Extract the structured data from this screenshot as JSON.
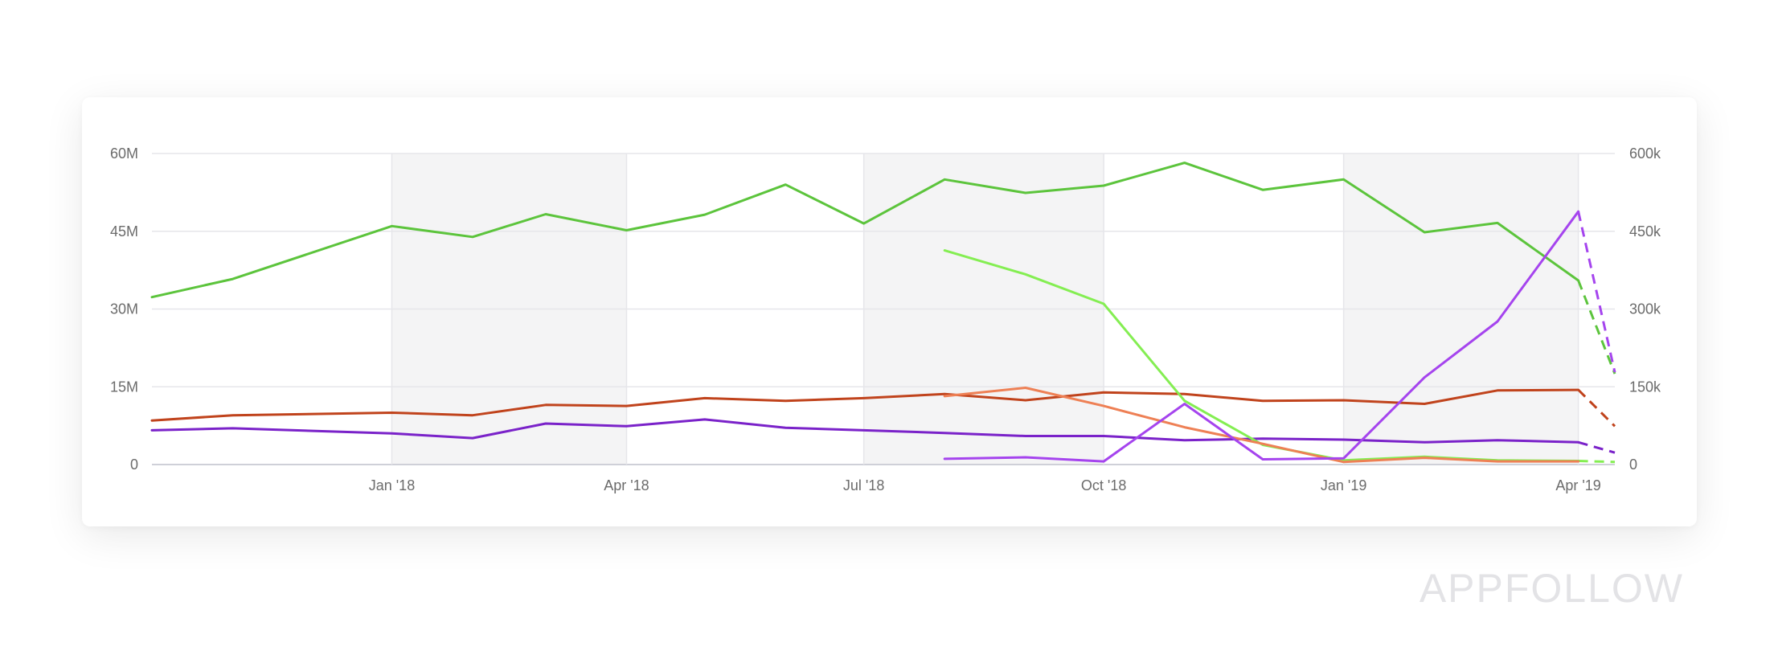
{
  "chart_data": {
    "type": "line",
    "title": "",
    "xlabel": "",
    "ylabel_left": "",
    "ylabel_right": "",
    "x_axis": {
      "start": "2017-10",
      "end": "2019-04-15",
      "tick_labels": [
        "Jan '18",
        "Apr '18",
        "Jul '18",
        "Oct '18",
        "Jan '19",
        "Apr '19"
      ],
      "shaded_bands": [
        [
          "Jan '18",
          "Apr '18"
        ],
        [
          "Jul '18",
          "Oct '18"
        ],
        [
          "Jan '19",
          "Apr '19"
        ]
      ]
    },
    "y_left": {
      "min": 0,
      "max": 60000000,
      "ticks": [
        0,
        15000000,
        30000000,
        45000000,
        60000000
      ],
      "tick_labels": [
        "0",
        "15M",
        "30M",
        "45M",
        "60M"
      ]
    },
    "y_right": {
      "min": 0,
      "max": 600000,
      "ticks": [
        0,
        150000,
        300000,
        450000,
        600000
      ],
      "tick_labels": [
        "0",
        "150k",
        "300k",
        "450k",
        "600k"
      ]
    },
    "grid": true,
    "legend": "none",
    "series": [
      {
        "axis": "left",
        "color": "#5cc43c",
        "points": [
          [
            "2017-10",
            32.3
          ],
          [
            "2017-11",
            35.8
          ],
          [
            "2018-01",
            46.0
          ],
          [
            "2018-02",
            43.9
          ],
          [
            "2018-03",
            48.3
          ],
          [
            "2018-04",
            45.2
          ],
          [
            "2018-05",
            48.2
          ],
          [
            "2018-06",
            54.0
          ],
          [
            "2018-07",
            46.5
          ],
          [
            "2018-08",
            55.0
          ],
          [
            "2018-09",
            52.4
          ],
          [
            "2018-10",
            53.8
          ],
          [
            "2018-11",
            58.2
          ],
          [
            "2018-12",
            53.0
          ],
          [
            "2019-01",
            55.0
          ],
          [
            "2019-02",
            44.8
          ],
          [
            "2019-03",
            46.6
          ],
          [
            "2019-04",
            35.5
          ]
        ],
        "forecast": [
          [
            "2019-04",
            35.5
          ],
          [
            "2019-04-15",
            17.5
          ]
        ]
      },
      {
        "axis": "left",
        "color": "#c0431c",
        "points": [
          [
            "2017-10",
            8.5
          ],
          [
            "2017-11",
            9.5
          ],
          [
            "2018-01",
            10.0
          ],
          [
            "2018-02",
            9.5
          ],
          [
            "2018-03",
            11.5
          ],
          [
            "2018-04",
            11.3
          ],
          [
            "2018-05",
            12.8
          ],
          [
            "2018-06",
            12.3
          ],
          [
            "2018-07",
            12.8
          ],
          [
            "2018-08",
            13.6
          ],
          [
            "2018-09",
            12.4
          ],
          [
            "2018-10",
            13.9
          ],
          [
            "2018-11",
            13.6
          ],
          [
            "2018-12",
            12.3
          ],
          [
            "2019-01",
            12.4
          ],
          [
            "2019-02",
            11.7
          ],
          [
            "2019-03",
            14.3
          ],
          [
            "2019-04",
            14.4
          ]
        ],
        "forecast": [
          [
            "2019-04",
            14.4
          ],
          [
            "2019-04-15",
            7.4
          ]
        ]
      },
      {
        "axis": "left",
        "color": "#7a22c9",
        "points": [
          [
            "2017-10",
            6.6
          ],
          [
            "2017-11",
            7.0
          ],
          [
            "2018-01",
            6.0
          ],
          [
            "2018-02",
            5.1
          ],
          [
            "2018-03",
            7.9
          ],
          [
            "2018-04",
            7.4
          ],
          [
            "2018-05",
            8.7
          ],
          [
            "2018-06",
            7.1
          ],
          [
            "2018-07",
            6.6
          ],
          [
            "2018-08",
            6.1
          ],
          [
            "2018-09",
            5.5
          ],
          [
            "2018-10",
            5.5
          ],
          [
            "2018-11",
            4.7
          ],
          [
            "2018-12",
            5.0
          ],
          [
            "2019-01",
            4.8
          ],
          [
            "2019-02",
            4.3
          ],
          [
            "2019-03",
            4.7
          ],
          [
            "2019-04",
            4.3
          ]
        ],
        "forecast": [
          [
            "2019-04",
            4.3
          ],
          [
            "2019-04-15",
            2.3
          ]
        ]
      },
      {
        "axis": "right",
        "color": "#84ee52",
        "points": [
          [
            "2018-08",
            413
          ],
          [
            "2018-09",
            367
          ],
          [
            "2018-10",
            310
          ],
          [
            "2018-11",
            123
          ],
          [
            "2018-12",
            38
          ],
          [
            "2019-01",
            8
          ],
          [
            "2019-02",
            15
          ],
          [
            "2019-03",
            8
          ],
          [
            "2019-04",
            7
          ]
        ],
        "forecast": [
          [
            "2019-04",
            7
          ],
          [
            "2019-04-15",
            5
          ]
        ]
      },
      {
        "axis": "right",
        "color": "#ee8055",
        "points": [
          [
            "2018-08",
            132
          ],
          [
            "2018-09",
            148
          ],
          [
            "2018-10",
            113
          ],
          [
            "2018-11",
            72
          ],
          [
            "2018-12",
            40
          ],
          [
            "2019-01",
            5
          ],
          [
            "2019-02",
            13
          ],
          [
            "2019-03",
            6
          ],
          [
            "2019-04",
            6
          ]
        ]
      },
      {
        "axis": "right",
        "color": "#a544ee",
        "points": [
          [
            "2018-08",
            11
          ],
          [
            "2018-09",
            14
          ],
          [
            "2018-10",
            6
          ],
          [
            "2018-11",
            117
          ],
          [
            "2018-12",
            10
          ],
          [
            "2019-01",
            12
          ],
          [
            "2019-02",
            168
          ],
          [
            "2019-03",
            276
          ],
          [
            "2019-04",
            488
          ]
        ],
        "forecast": [
          [
            "2019-04",
            488
          ],
          [
            "2019-04-15",
            178
          ]
        ]
      }
    ]
  },
  "watermark": {
    "text": "APPFOLLOW"
  }
}
